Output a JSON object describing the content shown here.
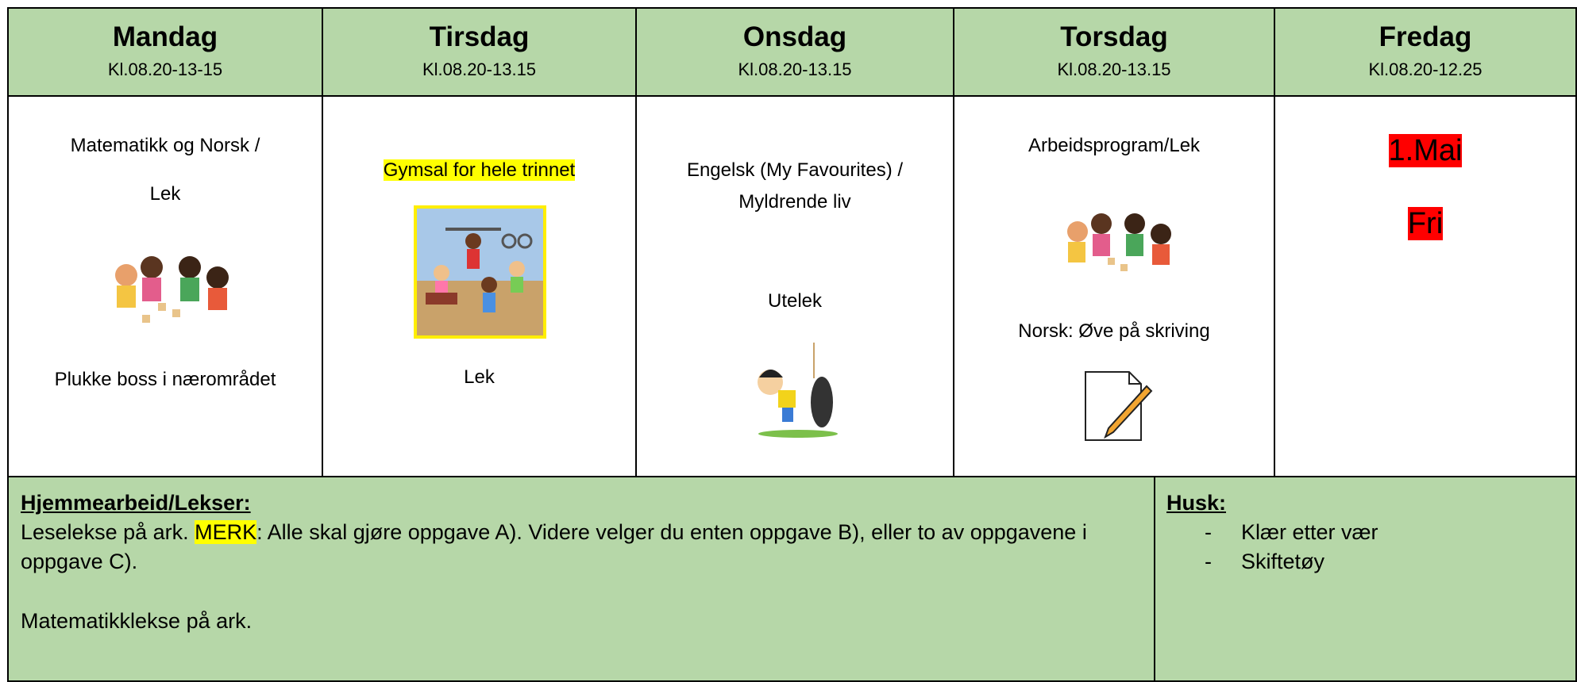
{
  "days": [
    {
      "name": "Mandag",
      "time": "Kl.08.20-13-15",
      "items": [
        "Matematikk og Norsk /",
        "Lek",
        "Plukke boss i nærområdet"
      ]
    },
    {
      "name": "Tirsdag",
      "time": "Kl.08.20-13.15",
      "items": [
        "Gymsal for hele trinnet",
        "Lek"
      ]
    },
    {
      "name": "Onsdag",
      "time": "Kl.08.20-13.15",
      "items": [
        "Engelsk (My Favourites) /",
        "Myldrende liv",
        "Utelek"
      ]
    },
    {
      "name": "Torsdag",
      "time": "Kl.08.20-13.15",
      "items": [
        "Arbeidsprogram/Lek",
        "Norsk: Øve på skriving"
      ]
    },
    {
      "name": "Fredag",
      "time": "Kl.08.20-12.25",
      "items": [
        "1.Mai",
        "Fri"
      ]
    }
  ],
  "homework": {
    "title": "Hjemmearbeid/Lekser:",
    "line1": [
      "Leselekse på ark.",
      "MERK",
      ": Alle skal gjøre oppgave A). Videre velger du enten oppgave B), eller to av oppgavene i oppgave C)."
    ],
    "line2": "Matematikklekse på ark."
  },
  "remember": {
    "title": "Husk:",
    "items": [
      "Klær etter vær",
      "Skiftetøy"
    ]
  }
}
